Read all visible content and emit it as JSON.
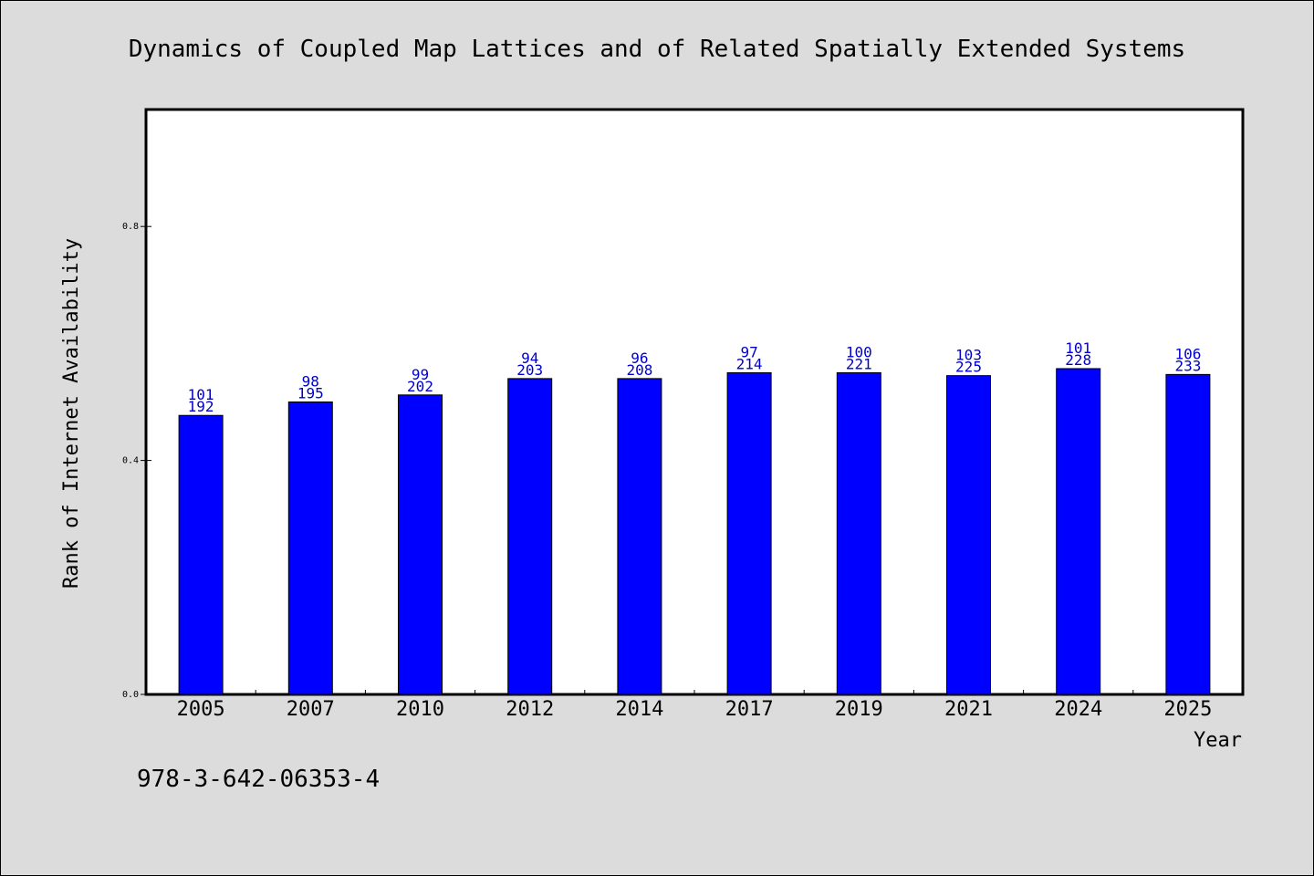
{
  "figure": {
    "background": "#dcdcdc",
    "footer_text": "978-3-642-06353-4"
  },
  "chart_data": {
    "type": "bar",
    "title": "Dynamics of Coupled Map Lattices and of Related Spatially Extended Systems",
    "xlabel": "Year",
    "ylabel": "Rank of Internet Availability",
    "categories": [
      "2005",
      "2007",
      "2010",
      "2012",
      "2014",
      "2017",
      "2019",
      "2021",
      "2024",
      "2025"
    ],
    "series": [
      {
        "color": "#0000ff",
        "values": [
          0.477,
          0.5,
          0.512,
          0.54,
          0.54,
          0.55,
          0.55,
          0.545,
          0.557,
          0.547
        ]
      }
    ],
    "bar_labels_top": [
      "101",
      "98",
      "99",
      "94",
      "96",
      "97",
      "100",
      "103",
      "101",
      "106"
    ],
    "bar_labels_bottom": [
      "192",
      "195",
      "202",
      "203",
      "208",
      "214",
      "221",
      "225",
      "228",
      "233"
    ],
    "label_color": "#0000cd",
    "ylim": [
      0,
      1.0
    ],
    "yticks": [
      0.0,
      0.4,
      0.8
    ],
    "ytick_labels": [
      "0.0",
      "0.4",
      "0.8"
    ],
    "grid": false
  }
}
